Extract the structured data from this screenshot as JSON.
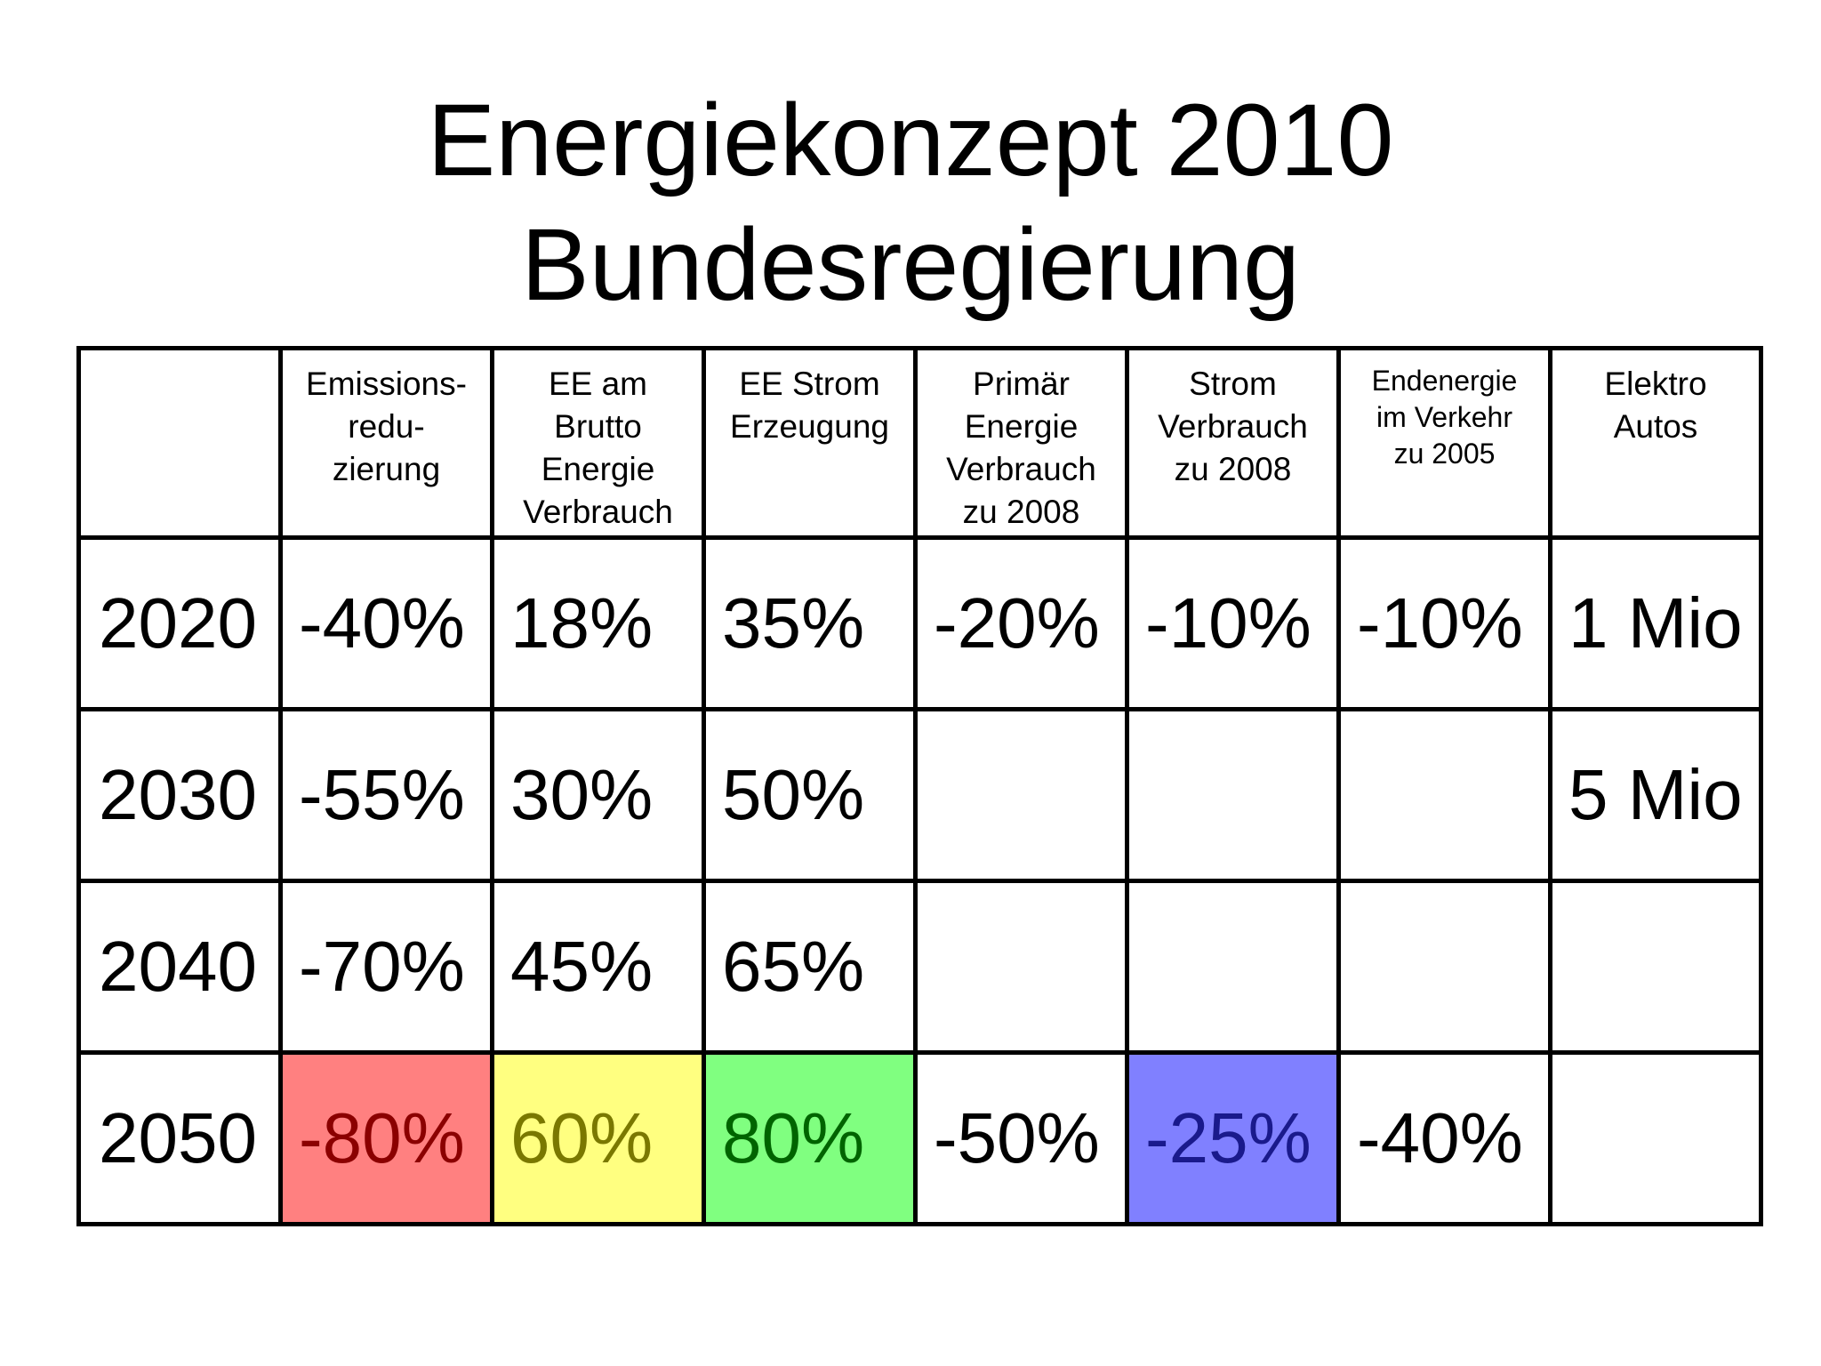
{
  "title": {
    "line1": "Energiekonzept 2010",
    "line2": "Bundesregierung"
  },
  "table": {
    "headers": [
      "",
      "Emissions-\nredu-\nzierung",
      "EE am\nBrutto\nEnergie\nVerbrauch",
      "EE Strom\nErzeugung",
      "Primär\nEnergie\nVerbrauch\nzu 2008",
      "Strom\nVerbrauch\nzu 2008",
      "Endenergie\nim Verkehr\nzu 2005",
      "Elektro\nAutos"
    ],
    "rows": [
      [
        "2020",
        "-40%",
        "18%",
        "35%",
        "-20%",
        "-10%",
        "-10%",
        "1 Mio"
      ],
      [
        "2030",
        "-55%",
        "30%",
        "50%",
        "",
        "",
        "",
        "5 Mio"
      ],
      [
        "2040",
        "-70%",
        "45%",
        "65%",
        "",
        "",
        "",
        ""
      ],
      [
        "2050",
        "-80%",
        "60%",
        "80%",
        "-50%",
        "-25%",
        "-40%",
        ""
      ]
    ],
    "highlight_colors": {
      "red": "#ff8080",
      "yellow": "#ffff80",
      "green": "#80ff80",
      "blue": "#8080ff"
    }
  }
}
